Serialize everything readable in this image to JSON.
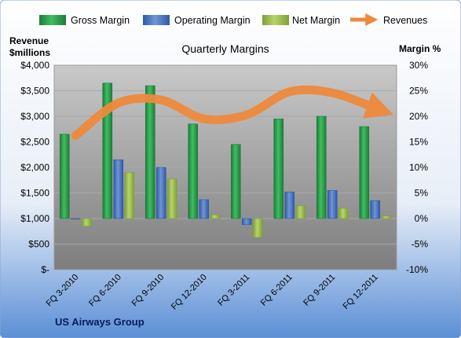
{
  "colors": {
    "gross": "#1f7a3c",
    "gross_hi": "#3fbf5f",
    "operating": "#2f5aa6",
    "operating_hi": "#6f95d6",
    "net": "#7f9f3a",
    "net_hi": "#b8d46a",
    "revenues": "#ee8a3c"
  },
  "chart_data": {
    "type": "bar",
    "title": "Quarterly Margins",
    "footer": "US Airways Group",
    "ylabel_left": [
      "Revenue",
      "$millions"
    ],
    "ylabel_right": "Margin %",
    "categories": [
      "FQ 3-2010",
      "FQ 6-2010",
      "FQ 9-2010",
      "FQ 12-2010",
      "FQ 3-2011",
      "FQ 6-2011",
      "FQ 9-2011",
      "FQ 12-2011"
    ],
    "left_axis": {
      "min": 0,
      "max": 4000,
      "step": 500,
      "tick_labels": [
        "$-",
        "$500",
        "$1,000",
        "$1,500",
        "$2,000",
        "$2,500",
        "$3,000",
        "$3,500",
        "$4,000"
      ]
    },
    "right_axis": {
      "min": -10,
      "max": 30,
      "step": 5,
      "tick_labels": [
        "-10%",
        "-5%",
        "0%",
        "5%",
        "10%",
        "15%",
        "20%",
        "25%",
        "30%"
      ]
    },
    "legend_position": "top",
    "series": [
      {
        "name": "Gross Margin",
        "axis": "right",
        "kind": "bar",
        "values": [
          16.5,
          26.5,
          26.0,
          18.5,
          14.5,
          19.5,
          20.0,
          18.0
        ]
      },
      {
        "name": "Operating Margin",
        "axis": "right",
        "kind": "bar",
        "values": [
          0.0,
          11.5,
          10.0,
          3.7,
          -1.2,
          5.2,
          5.5,
          3.5
        ]
      },
      {
        "name": "Net Margin",
        "axis": "right",
        "kind": "bar",
        "values": [
          -1.5,
          9.0,
          7.7,
          0.7,
          -3.7,
          2.5,
          2.0,
          0.5
        ]
      },
      {
        "name": "Revenues",
        "axis": "left",
        "kind": "line",
        "values": [
          2620,
          3260,
          3320,
          2950,
          3030,
          3480,
          3460,
          3160
        ]
      }
    ]
  }
}
